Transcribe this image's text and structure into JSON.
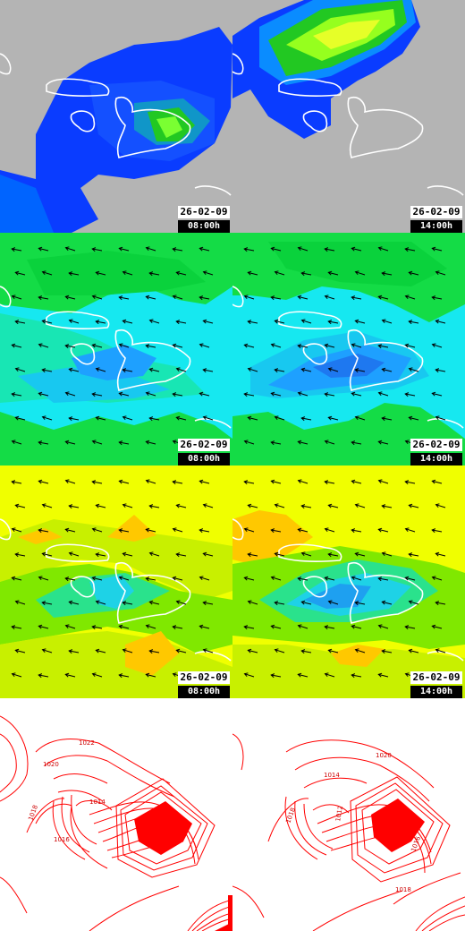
{
  "colors": {
    "land_gray": "#b4b4b4",
    "rain_blue": "#0a3cff",
    "rain_green": "#22c822",
    "rain_yellow": "#e6ff28",
    "wind_green": "#14dc46",
    "wind_cyan": "#16e8f0",
    "wind_blue": "#1e90ff",
    "temp_yellow": "#f0ff00",
    "temp_orange": "#ffc800",
    "temp_green": "#80e800",
    "isobar_red": "#ff0000"
  },
  "panels": [
    {
      "row": "precipitation",
      "date": "26-02-09",
      "time": "08:00h"
    },
    {
      "row": "precipitation",
      "date": "26-02-09",
      "time": "14:00h"
    },
    {
      "row": "wind",
      "date": "26-02-09",
      "time": "08:00h"
    },
    {
      "row": "wind",
      "date": "26-02-09",
      "time": "14:00h"
    },
    {
      "row": "temperature",
      "date": "26-02-09",
      "time": "08:00h"
    },
    {
      "row": "temperature",
      "date": "26-02-09",
      "time": "14:00h"
    },
    {
      "row": "pressure",
      "isobar_labels": [
        "1022",
        "1020",
        "1014",
        "1018",
        "1016"
      ]
    },
    {
      "row": "pressure",
      "isobar_labels": [
        "1020",
        "1014",
        "1018",
        "1012",
        "1016",
        "1018"
      ]
    }
  ]
}
